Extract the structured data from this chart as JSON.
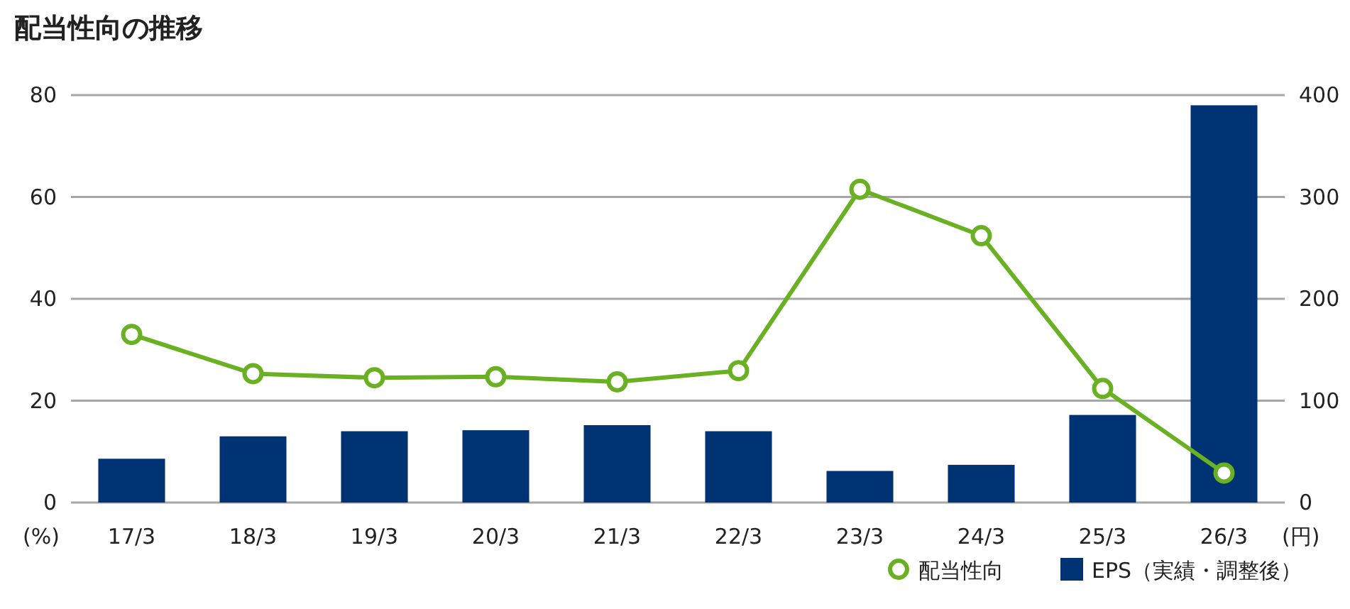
{
  "chart_data": {
    "type": "bar",
    "title": "配当性向の推移",
    "ylabel": "(%)",
    "y2label": "(円)",
    "categories": [
      "17/3",
      "18/3",
      "19/3",
      "20/3",
      "21/3",
      "22/3",
      "23/3",
      "24/3",
      "25/3",
      "26/3"
    ],
    "series": [
      {
        "name": "配当性向",
        "type": "line",
        "color": "#6ab023",
        "values": [
          33.0,
          25.3,
          24.5,
          24.7,
          23.7,
          25.9,
          61.5,
          52.4,
          22.4,
          5.8
        ]
      },
      {
        "name": "EPS（実績・調整後）",
        "axis": "y2",
        "color": "#003373",
        "values": [
          43,
          65,
          70,
          71,
          76,
          70,
          31,
          37,
          86,
          390
        ]
      }
    ],
    "ylim": [
      0,
      80
    ],
    "yticks": [
      0,
      20,
      40,
      60,
      80
    ],
    "y2lim": [
      0,
      400
    ],
    "y2ticks": [
      0,
      100,
      200,
      300,
      400
    ],
    "grid": "y",
    "legend": "bottom right",
    "marker": "circle",
    "line_style": "solid"
  }
}
